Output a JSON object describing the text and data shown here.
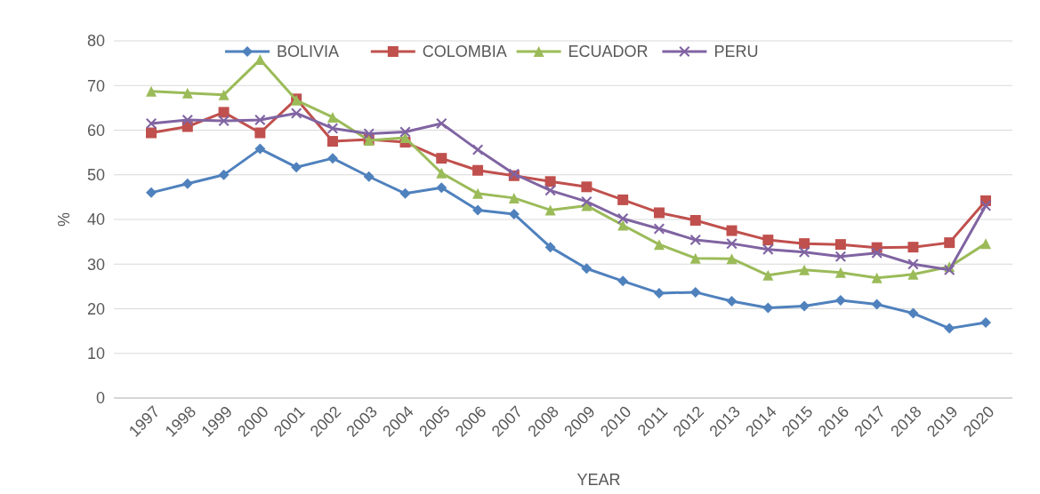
{
  "chart_data": {
    "type": "line",
    "xlabel": "YEAR",
    "ylabel": "%",
    "categories": [
      "1997",
      "1998",
      "1999",
      "2000",
      "2001",
      "2002",
      "2003",
      "2004",
      "2005",
      "2006",
      "2007",
      "2008",
      "2009",
      "2010",
      "2011",
      "2012",
      "2013",
      "2014",
      "2015",
      "2016",
      "2017",
      "2018",
      "2019",
      "2020"
    ],
    "series": [
      {
        "name": "BOLIVIA",
        "color": "#4f81bd",
        "marker": "diamond",
        "values": [
          46,
          48,
          50,
          55.8,
          51.7,
          53.7,
          49.6,
          45.8,
          47.1,
          42.1,
          41.2,
          33.8,
          29,
          26.2,
          23.5,
          23.7,
          21.7,
          20.2,
          20.6,
          21.9,
          21,
          19,
          15.6,
          16.9
        ]
      },
      {
        "name": "COLOMBIA",
        "color": "#c0504d",
        "marker": "square",
        "values": [
          59.4,
          60.8,
          64,
          59.4,
          67,
          57.5,
          57.9,
          57.3,
          53.7,
          51,
          49.8,
          48.5,
          47.3,
          44.4,
          41.5,
          39.8,
          37.5,
          35.4,
          34.6,
          34.4,
          33.7,
          33.8,
          34.8,
          44.2
        ]
      },
      {
        "name": "ECUADOR",
        "color": "#9bbb59",
        "marker": "triangle",
        "values": [
          68.7,
          68.3,
          67.9,
          75.8,
          66.7,
          62.9,
          57.7,
          58.3,
          50.4,
          45.8,
          44.8,
          42.1,
          43.1,
          38.7,
          34.4,
          31.3,
          31.2,
          27.5,
          28.7,
          28.1,
          26.9,
          27.7,
          29.4,
          34.6
        ]
      },
      {
        "name": "PERU",
        "color": "#8064a2",
        "marker": "cross",
        "values": [
          61.5,
          62.3,
          62.1,
          62.3,
          63.8,
          60.4,
          59.2,
          59.6,
          61.5,
          55.6,
          50.2,
          46.5,
          44,
          40.2,
          37.9,
          35.4,
          34.6,
          33.3,
          32.7,
          31.7,
          32.5,
          30,
          28.7,
          43.1
        ]
      }
    ],
    "ylim": [
      0,
      80
    ],
    "yticks": [
      0,
      10,
      20,
      30,
      40,
      50,
      60,
      70,
      80
    ],
    "grid": "y",
    "legend": "top"
  }
}
